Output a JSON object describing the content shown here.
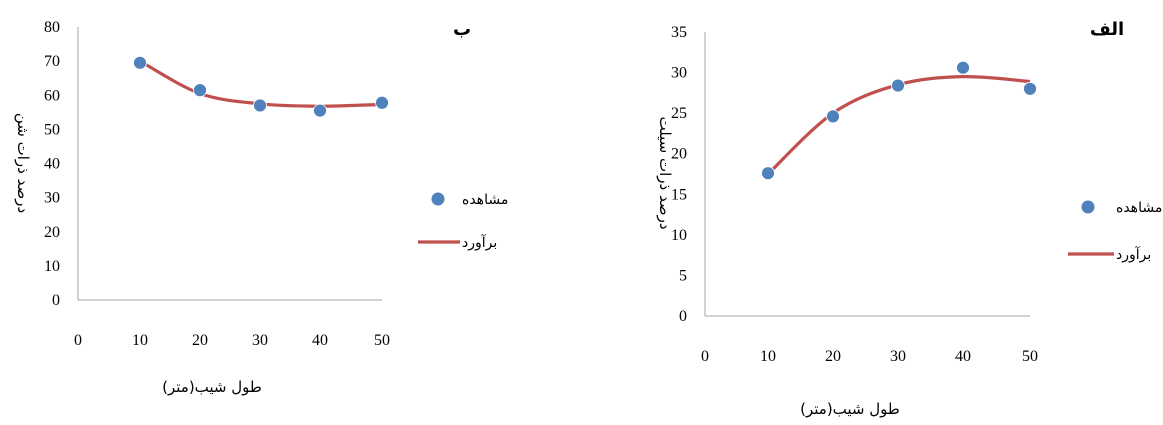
{
  "colors": {
    "observed": "#4F81BD",
    "fit": "#C0504D",
    "axis": "#A6A6A6"
  },
  "chart_data": [
    {
      "type": "scatter",
      "panel_label": "ب",
      "x": [
        10,
        20,
        30,
        40,
        50
      ],
      "observed": [
        69.5,
        61.5,
        57.0,
        55.5,
        57.8
      ],
      "fitted": [
        70.0,
        60.5,
        57.5,
        56.8,
        57.3
      ],
      "xlim": [
        0,
        50
      ],
      "ylim": [
        0,
        80
      ],
      "xticks": [
        "0",
        "10",
        "20",
        "30",
        "40",
        "50"
      ],
      "yticks": [
        "0",
        "10",
        "20",
        "30",
        "40",
        "50",
        "60",
        "70",
        "80"
      ],
      "xlabel": "طول شیب(متر)",
      "ylabel": "درصد ذرات شن",
      "series": [
        {
          "name": "مشاهده",
          "kind": "points"
        },
        {
          "name": "برآورد",
          "kind": "line"
        }
      ],
      "legend": "right",
      "grid": false
    },
    {
      "type": "scatter",
      "panel_label": "الف",
      "x": [
        10,
        20,
        30,
        40,
        50
      ],
      "observed": [
        17.6,
        24.6,
        28.4,
        30.6,
        28.0
      ],
      "fitted": [
        17.5,
        25.0,
        28.5,
        29.5,
        28.9
      ],
      "xlim": [
        0,
        50
      ],
      "ylim": [
        0,
        35
      ],
      "xticks": [
        "0",
        "10",
        "20",
        "30",
        "40",
        "50"
      ],
      "yticks": [
        "0",
        "5",
        "10",
        "15",
        "20",
        "25",
        "30",
        "35"
      ],
      "xlabel": "طول شیب(متر)",
      "ylabel": "درصد ذرات سیلت",
      "series": [
        {
          "name": "مشاهده",
          "kind": "points"
        },
        {
          "name": "برآورد",
          "kind": "line"
        }
      ],
      "legend": "right",
      "grid": false
    }
  ]
}
